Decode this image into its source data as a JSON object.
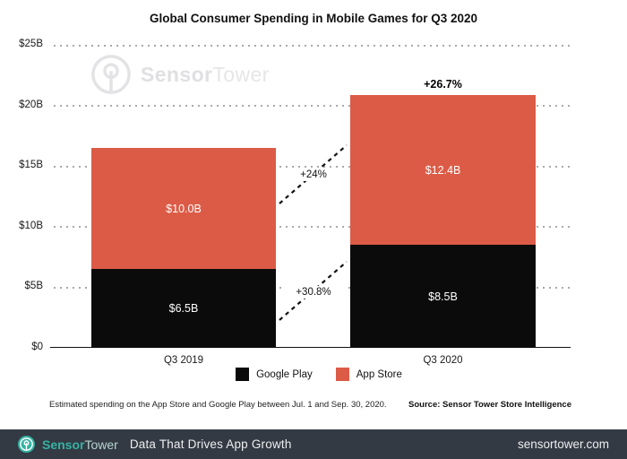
{
  "title": "Global Consumer Spending in Mobile Games for Q3 2020",
  "watermark": {
    "brand_bold": "Sensor",
    "brand_light": "Tower"
  },
  "chart_data": {
    "type": "bar",
    "stacked": true,
    "title": "Global Consumer Spending in Mobile Games for Q3 2020",
    "categories": [
      "Q3 2019",
      "Q3 2020"
    ],
    "series": [
      {
        "name": "Google Play",
        "color": "#0b0b0b",
        "values": [
          6.5,
          8.5
        ]
      },
      {
        "name": "App Store",
        "color": "#dc5b46",
        "values": [
          10.0,
          12.4
        ]
      }
    ],
    "value_labels": [
      [
        "$6.5B",
        "$10.0B"
      ],
      [
        "$8.5B",
        "$12.4B"
      ]
    ],
    "totals": [
      16.5,
      20.9
    ],
    "growth": {
      "total": "+26.7%",
      "app_store": "+24%",
      "google_play": "+30.8%"
    },
    "yticks": [
      {
        "label": "$0",
        "value": 0
      },
      {
        "label": "$5B",
        "value": 5
      },
      {
        "label": "$10B",
        "value": 10
      },
      {
        "label": "$15B",
        "value": 15
      },
      {
        "label": "$20B",
        "value": 20
      },
      {
        "label": "$25B",
        "value": 25
      }
    ],
    "ylim": [
      0,
      25
    ],
    "ylabel": "",
    "xlabel": "",
    "grid": "dotted-horizontal",
    "legend_position": "bottom"
  },
  "footnote": {
    "note": "Estimated spending on the App Store and Google Play between Jul. 1 and Sep. 30, 2020.",
    "source": "Source: Sensor Tower Store Intelligence"
  },
  "footer": {
    "brand_bold": "Sensor",
    "brand_light": "Tower",
    "tagline": "Data That Drives App Growth",
    "url": "sensortower.com",
    "bg_color": "#333a44",
    "accent_color": "#35b3a2"
  }
}
